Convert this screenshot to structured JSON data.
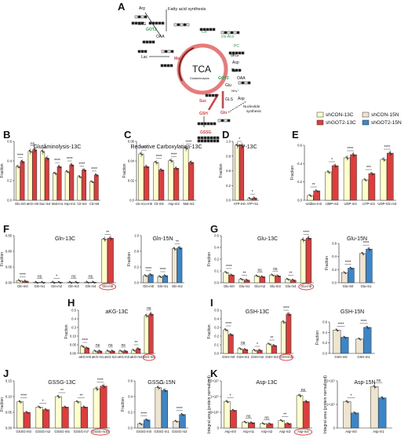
{
  "colors": {
    "shCON-13C": "#ffffcc",
    "shGOT2-13C": "#e03c3c",
    "shCON-15N": "#efe4cf",
    "shGOT2-15N": "#3a86c8",
    "outline": "#333333",
    "highlight": "#e03c3c",
    "accent_green": "#2e9e4f",
    "tca_ring": "#e97a7a"
  },
  "legend": [
    "shCON-13C",
    "shGOT2-13C",
    "shCON-15N",
    "shGOT2-15N"
  ],
  "pathway": {
    "label": "A",
    "tca_label": "TCA",
    "glutaminolysis": "Glutaminolysis",
    "metabolites": {
      "arg": "Arg",
      "fas": "Fatty acid synthesis",
      "akg": "αKG",
      "got2a": "GOT2",
      "oaa": "OAA",
      "cit": "Cit",
      "cisaco": "cis-Aco",
      "pc": "PC",
      "akg2": "αKG",
      "asp": "Asp",
      "pyr": "Pyr",
      "lac": "Lac",
      "mal": "Mal",
      "got2b": "GOT2",
      "oaa2": "OAA",
      "suc": "Suc",
      "glu": "Glu",
      "nh4": "NH₄⁺",
      "gls": "GLS",
      "asp2": "Asp",
      "nucleotide": "Nucleotide",
      "synthesis": "synthesis",
      "gsh": "GSH",
      "gln": "Gln",
      "gssg": "GSSG"
    }
  },
  "panels": {
    "B": {
      "label": "B",
      "title": "Glutaminolysis-13C",
      "ylabel": "Fraction",
      "yticks": [
        "0.0",
        "0.2",
        "0.4",
        "0.6"
      ],
      "categories": [
        "Glu-m0",
        "aKG-m0",
        "Suc-m4",
        "Mal-m4",
        "Asp-m4",
        "Cit-m4",
        "Cit-m6"
      ],
      "sig": [
        "****",
        "ns",
        "*",
        "****",
        "****",
        "****",
        "****"
      ]
    },
    "C": {
      "label": "C",
      "title": "Reductive Carboxylation-13C",
      "ylabel": "Fraction",
      "yticks": [
        "0.0",
        "0.02",
        "0.04",
        "0.06"
      ],
      "categories": [
        "cis-Aco-m5",
        "Cit-m5",
        "Asp-m3",
        "Mal-m3"
      ],
      "sig": [
        "****",
        "****",
        "****",
        "****"
      ]
    },
    "D": {
      "label": "D",
      "title": "ATP-13C",
      "ylabel": "Fraction",
      "yticks": [
        "0.0",
        "0.2",
        "0.6",
        "0.8",
        "1.0"
      ],
      "categories": [
        "ATP-m0",
        "ATP-m1"
      ],
      "sig": [
        "*",
        "*"
      ]
    },
    "E": {
      "label": "E",
      "ylabel": "Fraction",
      "yticks": [
        "0.0",
        "0.2",
        "0.4",
        "0.6"
      ],
      "categories": [
        "Uridine-m3",
        "UMP-m3",
        "UDP-m3",
        "UTP-m3",
        "UDP-Glc-m3"
      ],
      "sig": [
        "**",
        "*",
        "****",
        "***",
        "****"
      ]
    },
    "F1": {
      "label": "F",
      "title": "Gln-13C",
      "ylabel": "Fraction",
      "yticks": [
        "0.00",
        "0.05",
        "0.80",
        "0.85"
      ],
      "categories": [
        "Gln-m0",
        "Gln-m1",
        "Gln-m2",
        "Gln-m3",
        "Gln-m4",
        "Gln-m5"
      ],
      "sig": [
        "****",
        "ns",
        "*",
        "ns",
        "ns",
        "**"
      ]
    },
    "F2": {
      "title": "Gln-15N",
      "ylabel": "Fraction",
      "yticks": [
        "0.0",
        "0.2",
        "0.8",
        "1.0"
      ],
      "categories": [
        "Gln-m0",
        "Gln-m1",
        "Gln-m2"
      ],
      "sig": [
        "****",
        "****",
        "**"
      ]
    },
    "G1": {
      "label": "G",
      "title": "Glu-13C",
      "ylabel": "Fraction",
      "yticks": [
        "0.0",
        "0.1",
        "0.2",
        "0.4",
        "0.5"
      ],
      "categories": [
        "Glu-m0",
        "Glu-m1",
        "Glu-m2",
        "Glu-m3",
        "Glu-m4",
        "Glu-m5"
      ],
      "sig": [
        "****",
        "**",
        "ns",
        "ns",
        "**",
        "****"
      ]
    },
    "G2": {
      "title": "Glu-15N",
      "ylabel": "Fraction",
      "yticks": [
        "0.0",
        "0.2",
        "0.4",
        "0.6"
      ],
      "categories": [
        "Glu-m0",
        "Glu-m1"
      ],
      "sig": [
        "****",
        "****"
      ]
    },
    "H": {
      "label": "H",
      "title": "aKG-13C",
      "ylabel": "Fraction",
      "yticks": [
        "0.00",
        "0.05",
        "0.10",
        "0.3",
        "0.4",
        "0.5"
      ],
      "categories": [
        "aKG-m0",
        "aKG-m1",
        "aKG-m2",
        "aKG-m3",
        "aKG-m4",
        "aKG-m5"
      ],
      "sig": [
        "****",
        "ns",
        "ns",
        "ns",
        "**",
        "ns"
      ]
    },
    "I1": {
      "label": "I",
      "title": "GSH-13C",
      "ylabel": "Fraction",
      "yticks": [
        "0.0",
        "0.1",
        "0.2",
        "0.3",
        "0.4",
        "0.5"
      ],
      "categories": [
        "GSH-m0",
        "GSH-m1",
        "GSH-m2",
        "GSH-m3",
        "GSH-m5"
      ],
      "sig": [
        "****",
        "ns",
        "*",
        "**",
        "****"
      ]
    },
    "I2": {
      "title": "GSH-15N",
      "ylabel": "Fraction",
      "yticks": [
        "0.0",
        "0.2",
        "0.4",
        "0.6"
      ],
      "categories": [
        "GSH-m0",
        "GSH-m1"
      ],
      "sig": [
        "****",
        "****"
      ]
    },
    "J1": {
      "label": "J",
      "title": "GSSG-13C",
      "ylabel": "Fraction",
      "yticks": [
        "0.00",
        "0.05",
        "0.10",
        "0.15"
      ],
      "categories": [
        "GSSG-m0",
        "GSSG-m2",
        "GSSG-m5",
        "GSSG-m7",
        "GSSG-m10"
      ],
      "sig": [
        "****",
        "*",
        "**",
        "**",
        "****"
      ]
    },
    "J2": {
      "title": "GSSG-15N",
      "ylabel": "Fraction",
      "yticks": [
        "0.0",
        "0.2",
        "0.4",
        "0.6"
      ],
      "categories": [
        "GSSG-m0",
        "GSSG-m1",
        "GSSG-m2"
      ],
      "sig": [
        "****",
        "*",
        "****"
      ]
    },
    "K1": {
      "label": "K",
      "title": "Asp-13C",
      "ylabel": "Integral area (protein normalized)",
      "yticks": [
        "0",
        "5×10⁶",
        "1×10⁷",
        "1.5×10⁷"
      ],
      "categories": [
        "Asp-m0",
        "Asp-m1",
        "Asp-m2",
        "Asp-m3",
        "Asp-m4"
      ],
      "sig": [
        "*",
        "ns",
        "ns",
        "**",
        "ns"
      ]
    },
    "K2": {
      "title": "Asp-15N",
      "ylabel": "Integral area (protein normalized)",
      "yticks": [
        "0",
        "1×10⁷",
        "2×10⁷"
      ],
      "categories": [
        "Asp-m0",
        "Asp-m1"
      ],
      "sig": [
        "*",
        "ns"
      ]
    }
  },
  "chart_data": [
    {
      "type": "bar",
      "panel": "B",
      "title": "Glutaminolysis-13C",
      "ylabel": "Fraction",
      "ylim": [
        0,
        0.7
      ],
      "categories": [
        "Glu-m0",
        "aKG-m0",
        "Suc-m4",
        "Mal-m4",
        "Asp-m4",
        "Cit-m4",
        "Cit-m6"
      ],
      "series": [
        {
          "name": "shCON-13C",
          "values": [
            0.4,
            0.58,
            0.58,
            0.32,
            0.34,
            0.28,
            0.22
          ]
        },
        {
          "name": "shGOT2-13C",
          "values": [
            0.46,
            0.6,
            0.5,
            0.4,
            0.42,
            0.36,
            0.3
          ]
        }
      ]
    },
    {
      "type": "bar",
      "panel": "C",
      "title": "Reductive Carboxylation-13C",
      "ylabel": "Fraction",
      "ylim": [
        0,
        0.07
      ],
      "categories": [
        "cis-Aco-m5",
        "Cit-m5",
        "Asp-m3",
        "Mal-m3"
      ],
      "series": [
        {
          "name": "shCON-13C",
          "values": [
            0.055,
            0.045,
            0.047,
            0.062
          ]
        },
        {
          "name": "shGOT2-13C",
          "values": [
            0.04,
            0.036,
            0.038,
            0.045
          ]
        }
      ]
    },
    {
      "type": "bar",
      "panel": "D",
      "title": "ATP-13C",
      "ylabel": "Fraction",
      "ylim": [
        0,
        1.05
      ],
      "categories": [
        "ATP-m0",
        "ATP-m1"
      ],
      "series": [
        {
          "name": "shCON-13C",
          "values": [
            0.98,
            0.03
          ]
        },
        {
          "name": "shGOT2-13C",
          "values": [
            0.97,
            0.04
          ]
        }
      ]
    },
    {
      "type": "bar",
      "panel": "E",
      "ylabel": "Fraction",
      "ylim": [
        0,
        0.7
      ],
      "categories": [
        "Uridine-m3",
        "UMP-m3",
        "UDP-m3",
        "UTP-m3",
        "UDP-Glc-m3"
      ],
      "series": [
        {
          "name": "shCON-13C",
          "values": [
            0.06,
            0.36,
            0.54,
            0.26,
            0.52
          ]
        },
        {
          "name": "shGOT2-13C",
          "values": [
            0.12,
            0.44,
            0.58,
            0.34,
            0.6
          ]
        }
      ]
    },
    {
      "type": "bar",
      "panel": "F",
      "title": "Gln-13C",
      "ylabel": "Fraction",
      "ylim": [
        0,
        0.9
      ],
      "categories": [
        "Gln-m0",
        "Gln-m1",
        "Gln-m2",
        "Gln-m3",
        "Gln-m4",
        "Gln-m5"
      ],
      "series": [
        {
          "name": "shCON-13C",
          "values": [
            0.04,
            0.005,
            0.008,
            0.005,
            0.01,
            0.83
          ]
        },
        {
          "name": "shGOT2-13C",
          "values": [
            0.03,
            0.005,
            0.006,
            0.005,
            0.01,
            0.85
          ]
        }
      ]
    },
    {
      "type": "bar",
      "panel": "F",
      "title": "Gln-15N",
      "ylabel": "Fraction",
      "ylim": [
        0,
        1.0
      ],
      "categories": [
        "Gln-m0",
        "Gln-m1",
        "Gln-m2"
      ],
      "series": [
        {
          "name": "shCON-15N",
          "values": [
            0.15,
            0.13,
            0.72
          ]
        },
        {
          "name": "shGOT2-15N",
          "values": [
            0.17,
            0.15,
            0.74
          ]
        }
      ]
    },
    {
      "type": "bar",
      "panel": "G",
      "title": "Glu-13C",
      "ylabel": "Fraction",
      "ylim": [
        0,
        0.55
      ],
      "categories": [
        "Glu-m0",
        "Glu-m1",
        "Glu-m2",
        "Glu-m3",
        "Glu-m4",
        "Glu-m5"
      ],
      "series": [
        {
          "name": "shCON-13C",
          "values": [
            0.12,
            0.04,
            0.08,
            0.09,
            0.04,
            0.5
          ]
        },
        {
          "name": "shGOT2-13C",
          "values": [
            0.09,
            0.03,
            0.07,
            0.08,
            0.03,
            0.52
          ]
        }
      ]
    },
    {
      "type": "bar",
      "panel": "G",
      "title": "Glu-15N",
      "ylabel": "Fraction",
      "ylim": [
        0,
        0.7
      ],
      "categories": [
        "Glu-m0",
        "Glu-m1"
      ],
      "series": [
        {
          "name": "shCON-15N",
          "values": [
            0.18,
            0.52
          ]
        },
        {
          "name": "shGOT2-15N",
          "values": [
            0.26,
            0.6
          ]
        }
      ]
    },
    {
      "type": "bar",
      "panel": "H",
      "title": "aKG-13C",
      "ylabel": "Fraction",
      "ylim": [
        0,
        0.55
      ],
      "categories": [
        "aKG-m0",
        "aKG-m1",
        "aKG-m2",
        "aKG-m3",
        "aKG-m4",
        "aKG-m5"
      ],
      "series": [
        {
          "name": "shCON-13C",
          "values": [
            0.09,
            0.03,
            0.03,
            0.03,
            0.04,
            0.48
          ]
        },
        {
          "name": "shGOT2-13C",
          "values": [
            0.07,
            0.03,
            0.03,
            0.03,
            0.06,
            0.5
          ]
        }
      ]
    },
    {
      "type": "bar",
      "panel": "I",
      "title": "GSH-13C",
      "ylabel": "Fraction",
      "ylim": [
        0,
        0.55
      ],
      "categories": [
        "GSH-m0",
        "GSH-m1",
        "GSH-m2",
        "GSH-m3",
        "GSH-m5"
      ],
      "series": [
        {
          "name": "shCON-13C",
          "values": [
            0.3,
            0.06,
            0.04,
            0.12,
            0.4
          ]
        },
        {
          "name": "shGOT2-13C",
          "values": [
            0.24,
            0.05,
            0.04,
            0.1,
            0.5
          ]
        }
      ]
    },
    {
      "type": "bar",
      "panel": "I",
      "title": "GSH-15N",
      "ylabel": "Fraction",
      "ylim": [
        0,
        0.7
      ],
      "categories": [
        "GSH-m0",
        "GSH-m1"
      ],
      "series": [
        {
          "name": "shCON-15N",
          "values": [
            0.52,
            0.32
          ]
        },
        {
          "name": "shGOT2-15N",
          "values": [
            0.36,
            0.58
          ]
        }
      ]
    },
    {
      "type": "bar",
      "panel": "J",
      "title": "GSSG-13C",
      "ylabel": "Fraction",
      "ylim": [
        0,
        0.18
      ],
      "categories": [
        "GSSG-m0",
        "GSSG-m2",
        "GSSG-m5",
        "GSSG-m7",
        "GSSG-m10"
      ],
      "series": [
        {
          "name": "shCON-13C",
          "values": [
            0.1,
            0.08,
            0.12,
            0.1,
            0.15
          ]
        },
        {
          "name": "shGOT2-13C",
          "values": [
            0.06,
            0.07,
            0.08,
            0.08,
            0.16
          ]
        }
      ]
    },
    {
      "type": "bar",
      "panel": "J",
      "title": "GSSG-15N",
      "ylabel": "Fraction",
      "ylim": [
        0,
        0.7
      ],
      "categories": [
        "GSSG-m0",
        "GSSG-m1",
        "GSSG-m2"
      ],
      "series": [
        {
          "name": "shCON-15N",
          "values": [
            0.06,
            0.6,
            0.1
          ]
        },
        {
          "name": "shGOT2-15N",
          "values": [
            0.12,
            0.56,
            0.2
          ]
        }
      ]
    },
    {
      "type": "bar",
      "panel": "K",
      "title": "Asp-13C",
      "ylabel": "Integral area (protein normalized)",
      "ylim": [
        0,
        16000000
      ],
      "categories": [
        "Asp-m0",
        "Asp-m1",
        "Asp-m2",
        "Asp-m3",
        "Asp-m4"
      ],
      "series": [
        {
          "name": "shCON-13C",
          "values": [
            9000000,
            2000000,
            1500000,
            2500000,
            11000000
          ]
        },
        {
          "name": "shGOT2-13C",
          "values": [
            6000000,
            1800000,
            1400000,
            1500000,
            9000000
          ]
        }
      ]
    },
    {
      "type": "bar",
      "panel": "K",
      "title": "Asp-15N",
      "ylabel": "Integral area (protein normalized)",
      "ylim": [
        0,
        25000000
      ],
      "categories": [
        "Asp-m0",
        "Asp-m1"
      ],
      "series": [
        {
          "name": "shCON-15N",
          "values": [
            14000000,
            22000000
          ]
        },
        {
          "name": "shGOT2-15N",
          "values": [
            8000000,
            16000000
          ]
        }
      ]
    }
  ]
}
